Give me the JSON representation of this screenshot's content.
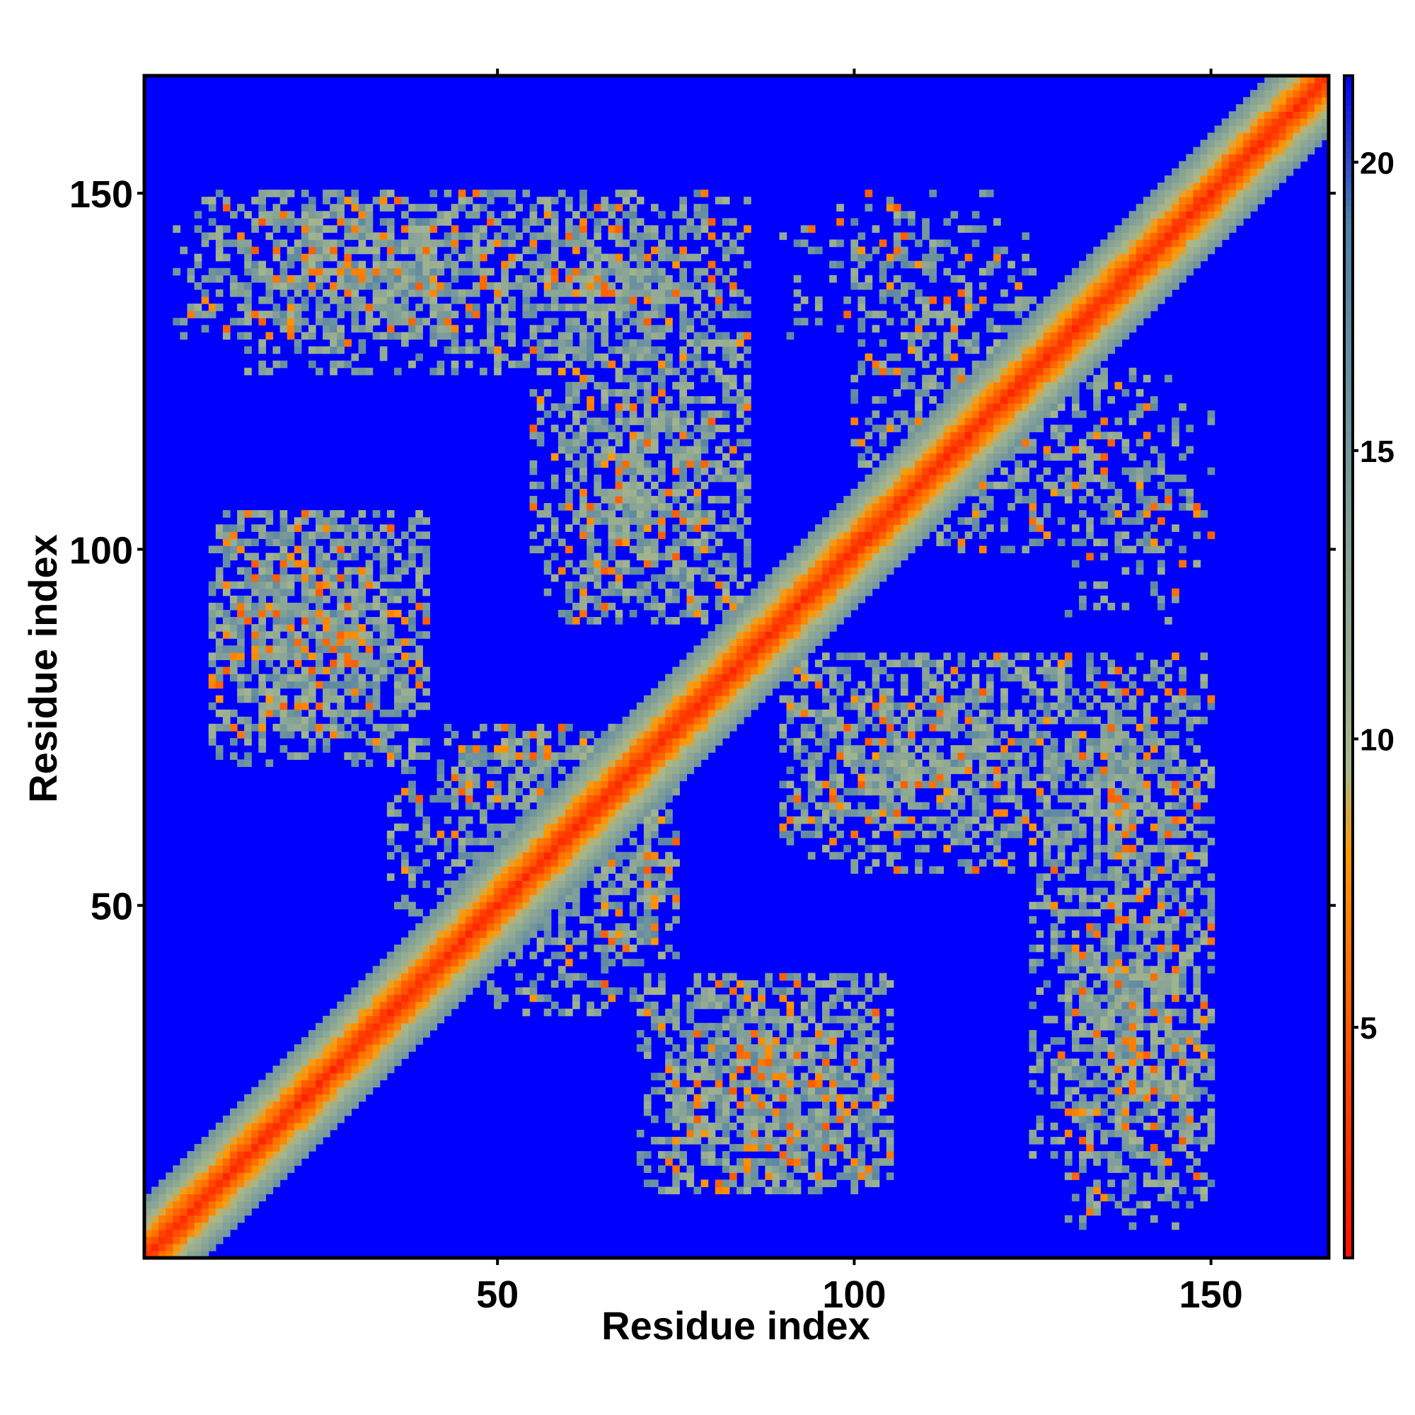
{
  "chart_data": {
    "type": "heatmap",
    "title": "",
    "xlabel": "Residue index",
    "ylabel": "Residue index",
    "n_residues": 166,
    "xlim": [
      1,
      166
    ],
    "ylim": [
      1,
      166
    ],
    "x_ticks": [
      50,
      100,
      150
    ],
    "y_ticks": [
      50,
      100,
      150
    ],
    "x_tick_labels": [
      "50",
      "100",
      "150"
    ],
    "y_tick_labels": [
      "50",
      "100",
      "150"
    ],
    "colorbar": {
      "range": [
        1,
        21.5
      ],
      "ticks": [
        5,
        10,
        15,
        20
      ],
      "tick_labels": [
        "5",
        "10",
        "15",
        "20"
      ],
      "colors": [
        "#ff0000",
        "#ff4400",
        "#ff9900",
        "#a8b88c",
        "#4f7fa8",
        "#0000ff"
      ],
      "stops": [
        0,
        4,
        8,
        9.5,
        19,
        21.5
      ]
    },
    "background_value": 21.5,
    "background_color": "#0000ff",
    "diagonal": {
      "core_max": 3,
      "band_width_residues": 8
    },
    "contact_regions": [
      {
        "x_range": [
          5,
          45
        ],
        "y_range": [
          130,
          150
        ],
        "strength": 0.55
      },
      {
        "x_range": [
          45,
          85
        ],
        "y_range": [
          125,
          150
        ],
        "strength": 0.55
      },
      {
        "x_range": [
          60,
          85
        ],
        "y_range": [
          90,
          125
        ],
        "strength": 0.5
      },
      {
        "x_range": [
          10,
          40
        ],
        "y_range": [
          75,
          105
        ],
        "strength": 0.6
      },
      {
        "x_range": [
          90,
          145
        ],
        "y_range": [
          55,
          85
        ],
        "strength": 0.5
      },
      {
        "x_range": [
          125,
          150
        ],
        "y_range": [
          15,
          55
        ],
        "strength": 0.6
      },
      {
        "x_range": [
          70,
          105
        ],
        "y_range": [
          10,
          40
        ],
        "strength": 0.6
      },
      {
        "x_range": [
          35,
          75
        ],
        "y_range": [
          45,
          75
        ],
        "strength": 0.45
      },
      {
        "x_range": [
          100,
          145
        ],
        "y_range": [
          100,
          125
        ],
        "strength": 0.35
      },
      {
        "x_range": [
          90,
          120
        ],
        "y_range": [
          130,
          150
        ],
        "strength": 0.3
      }
    ]
  }
}
